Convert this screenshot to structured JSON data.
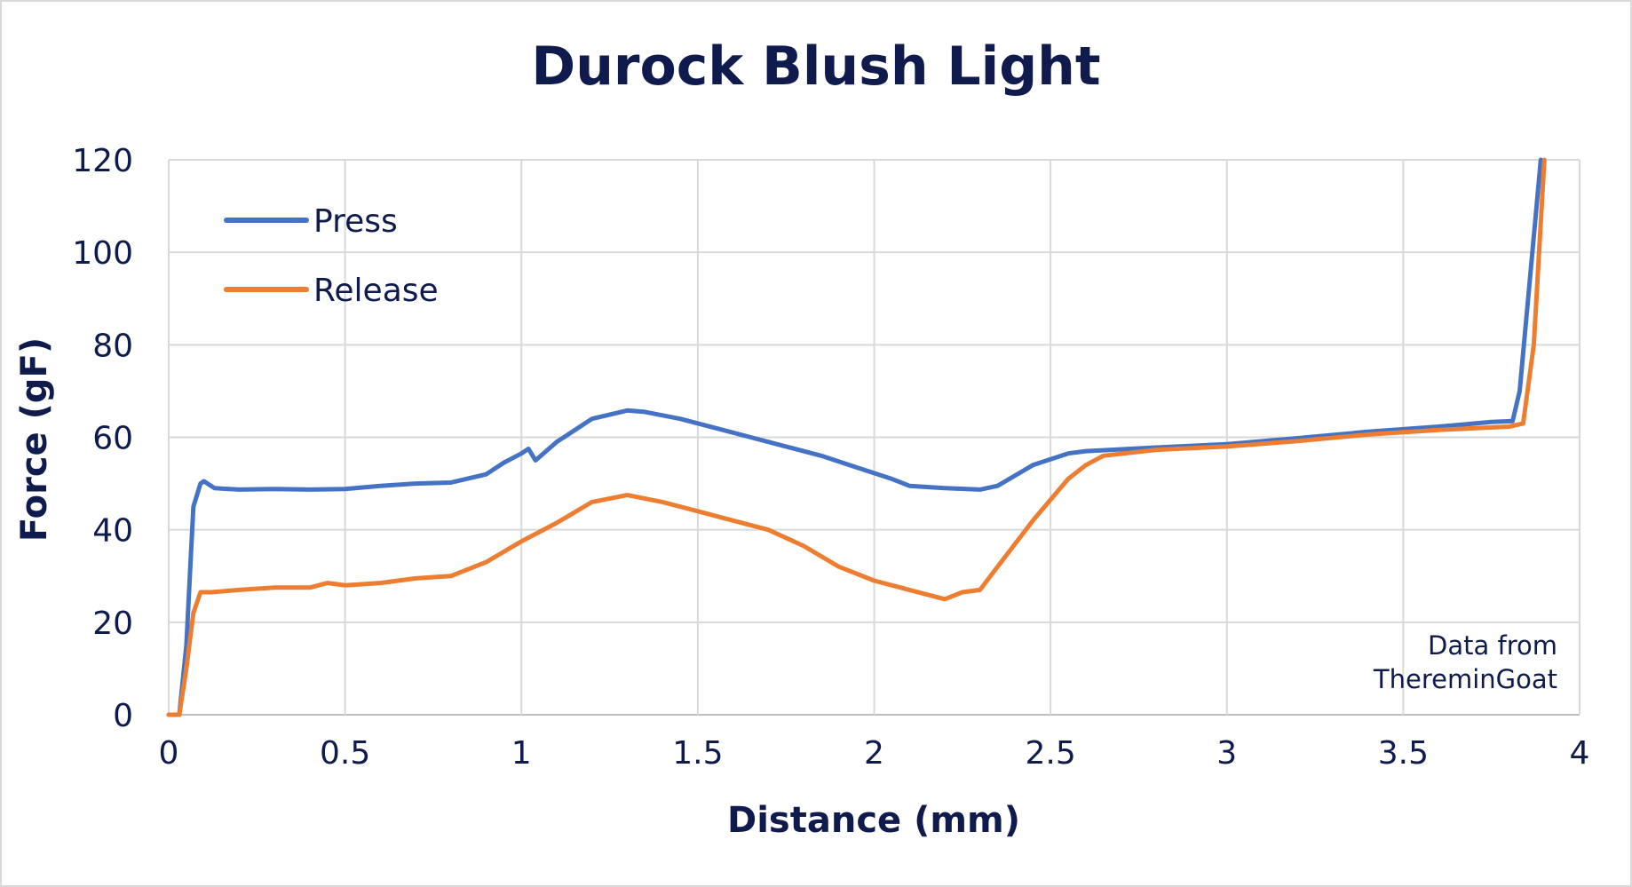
{
  "chart_data": {
    "type": "line",
    "title": "Durock Blush Light",
    "xlabel": "Distance (mm)",
    "ylabel": "Force (gF)",
    "xlim": [
      0,
      4
    ],
    "ylim": [
      0,
      120
    ],
    "x_ticks": [
      "0",
      "0.5",
      "1",
      "1.5",
      "2",
      "2.5",
      "3",
      "3.5",
      "4"
    ],
    "y_ticks": [
      "0",
      "20",
      "40",
      "60",
      "80",
      "100",
      "120"
    ],
    "grid": true,
    "legend_position": "top-left",
    "annotation": [
      "Data from",
      "ThereminGoat"
    ],
    "series": [
      {
        "name": "Press",
        "color": "#4472c4",
        "points": [
          [
            0.0,
            0
          ],
          [
            0.03,
            0
          ],
          [
            0.05,
            15
          ],
          [
            0.06,
            30
          ],
          [
            0.07,
            45
          ],
          [
            0.09,
            50
          ],
          [
            0.1,
            50.5
          ],
          [
            0.13,
            49
          ],
          [
            0.2,
            48.7
          ],
          [
            0.3,
            48.8
          ],
          [
            0.4,
            48.7
          ],
          [
            0.5,
            48.8
          ],
          [
            0.6,
            49.5
          ],
          [
            0.7,
            50
          ],
          [
            0.8,
            50.2
          ],
          [
            0.9,
            52
          ],
          [
            0.95,
            54.5
          ],
          [
            1.0,
            56.5
          ],
          [
            1.02,
            57.5
          ],
          [
            1.04,
            55
          ],
          [
            1.1,
            59
          ],
          [
            1.2,
            64
          ],
          [
            1.3,
            65.8
          ],
          [
            1.35,
            65.5
          ],
          [
            1.45,
            64
          ],
          [
            1.55,
            62
          ],
          [
            1.65,
            60
          ],
          [
            1.75,
            58
          ],
          [
            1.85,
            56
          ],
          [
            1.95,
            53.5
          ],
          [
            2.05,
            51
          ],
          [
            2.1,
            49.5
          ],
          [
            2.2,
            49
          ],
          [
            2.3,
            48.7
          ],
          [
            2.35,
            49.5
          ],
          [
            2.45,
            54
          ],
          [
            2.55,
            56.5
          ],
          [
            2.6,
            57
          ],
          [
            2.8,
            57.8
          ],
          [
            3.0,
            58.5
          ],
          [
            3.2,
            59.8
          ],
          [
            3.4,
            61.2
          ],
          [
            3.6,
            62.3
          ],
          [
            3.75,
            63.3
          ],
          [
            3.81,
            63.5
          ],
          [
            3.83,
            70
          ],
          [
            3.86,
            95
          ],
          [
            3.89,
            120
          ]
        ]
      },
      {
        "name": "Release",
        "color": "#ed7d31",
        "points": [
          [
            0.0,
            0
          ],
          [
            0.03,
            0
          ],
          [
            0.05,
            10
          ],
          [
            0.06,
            16
          ],
          [
            0.07,
            22
          ],
          [
            0.09,
            26.5
          ],
          [
            0.12,
            26.5
          ],
          [
            0.2,
            27
          ],
          [
            0.3,
            27.5
          ],
          [
            0.4,
            27.5
          ],
          [
            0.45,
            28.5
          ],
          [
            0.5,
            28
          ],
          [
            0.6,
            28.5
          ],
          [
            0.7,
            29.5
          ],
          [
            0.8,
            30
          ],
          [
            0.9,
            33
          ],
          [
            1.0,
            37.5
          ],
          [
            1.1,
            41.5
          ],
          [
            1.2,
            46
          ],
          [
            1.3,
            47.5
          ],
          [
            1.4,
            46
          ],
          [
            1.5,
            44
          ],
          [
            1.6,
            42
          ],
          [
            1.7,
            40
          ],
          [
            1.8,
            36.5
          ],
          [
            1.9,
            32
          ],
          [
            2.0,
            29
          ],
          [
            2.1,
            27
          ],
          [
            2.2,
            25
          ],
          [
            2.25,
            26.5
          ],
          [
            2.3,
            27
          ],
          [
            2.35,
            32
          ],
          [
            2.45,
            42
          ],
          [
            2.55,
            51
          ],
          [
            2.6,
            54
          ],
          [
            2.65,
            56
          ],
          [
            2.8,
            57.3
          ],
          [
            3.0,
            58
          ],
          [
            3.2,
            59.2
          ],
          [
            3.4,
            60.6
          ],
          [
            3.6,
            61.6
          ],
          [
            3.8,
            62.3
          ],
          [
            3.84,
            63
          ],
          [
            3.87,
            80
          ],
          [
            3.9,
            120
          ]
        ]
      }
    ]
  }
}
